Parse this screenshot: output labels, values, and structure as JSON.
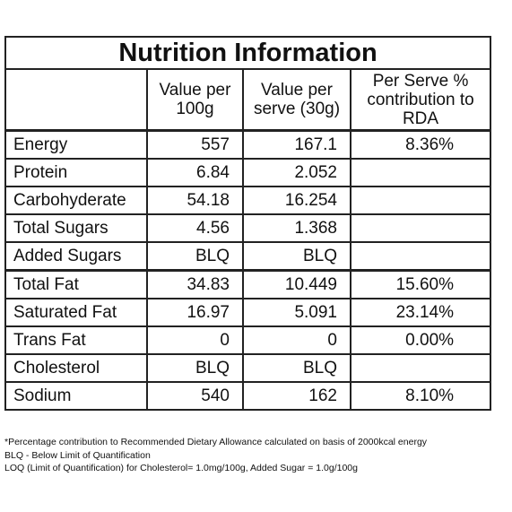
{
  "table": {
    "title": "Nutrition Information",
    "header": [
      null,
      "Value per 100g",
      "Value per serve (30g)",
      "Per Serve % contribution to RDA"
    ],
    "rows": [
      [
        "Energy",
        "557",
        "167.1",
        "8.36%"
      ],
      [
        "Protein",
        "6.84",
        "2.052",
        null
      ],
      [
        "Carbohyderate",
        "54.18",
        "16.254",
        null
      ],
      [
        "Total Sugars",
        "4.56",
        "1.368",
        null
      ],
      [
        "Added Sugars",
        "BLQ",
        "BLQ",
        null
      ],
      [
        "Total Fat",
        "34.83",
        "10.449",
        "15.60%"
      ],
      [
        "Saturated Fat",
        "16.97",
        "5.091",
        "23.14%"
      ],
      [
        "Trans Fat",
        "0",
        "0",
        "0.00%"
      ],
      [
        "Cholesterol",
        "BLQ",
        "BLQ",
        null
      ],
      [
        "Sodium",
        "540",
        "162",
        "8.10%"
      ]
    ]
  },
  "footnotes": [
    "*Percentage contribution to Recommended Dietary Allowance calculated on basis of 2000kcal energy",
    "BLQ - Below Limit of Quantification",
    "LOQ (Limit of Quantification) for Cholesterol= 1.0mg/100g, Added Sugar = 1.0g/100g"
  ]
}
